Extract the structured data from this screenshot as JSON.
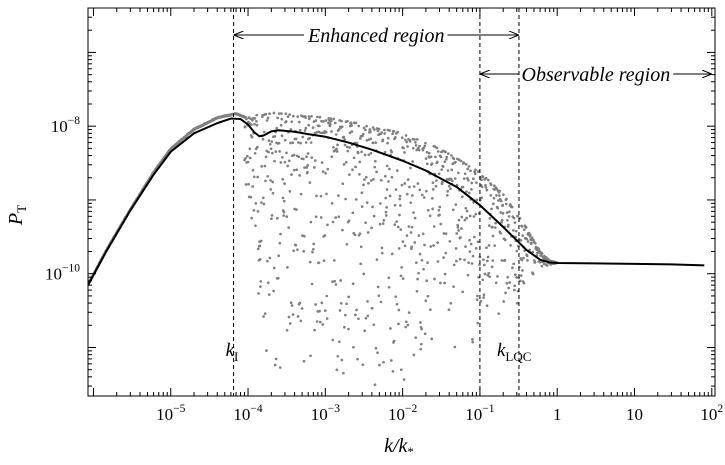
{
  "chart_data": {
    "type": "scatter",
    "xlabel_main": "k/k",
    "xlabel_sub": "*",
    "ylabel_main": "P",
    "ylabel_sub": "T",
    "x_scale": "log",
    "y_scale": "log",
    "xlim": [
      8.5e-07,
      110
    ],
    "ylim": [
      2.2e-12,
      4e-07
    ],
    "grid": false,
    "x_ticks": [
      {
        "value": 1e-05,
        "base": "10",
        "exp": "−5"
      },
      {
        "value": 0.0001,
        "base": "10",
        "exp": "−4"
      },
      {
        "value": 0.001,
        "base": "10",
        "exp": "−3"
      },
      {
        "value": 0.01,
        "base": "10",
        "exp": "−2"
      },
      {
        "value": 0.1,
        "base": "10",
        "exp": "−1"
      },
      {
        "value": 1,
        "base": "1",
        "exp": ""
      },
      {
        "value": 10,
        "base": "10",
        "exp": ""
      },
      {
        "value": 100,
        "base": "10",
        "exp": "2"
      }
    ],
    "y_ticks": [
      {
        "value": 1e-08,
        "base": "10",
        "exp": "−8"
      },
      {
        "value": 1e-10,
        "base": "10",
        "exp": "−10"
      }
    ],
    "vlines": [
      {
        "x": 6.5e-05,
        "label_main": "k",
        "label_sub": "I"
      },
      {
        "x": 0.1,
        "label_main": "",
        "label_sub": ""
      },
      {
        "x": 0.32,
        "label_main": "k",
        "label_sub": "LQC"
      }
    ],
    "regions": [
      {
        "label": "Enhanced region",
        "x_from": 6.5e-05,
        "x_to": 0.32,
        "y": 3.4e-07
      },
      {
        "label": "Observable region",
        "x_from": 0.1,
        "x_to": 100,
        "y": 1.1e-07
      }
    ],
    "series": [
      {
        "style": "line",
        "color": "#000000",
        "points": [
          [
            8.5e-07,
            7e-11
          ],
          [
            1.5e-06,
            2.1e-10
          ],
          [
            3e-06,
            7.2e-10
          ],
          [
            6e-06,
            2.2e-09
          ],
          [
            1e-05,
            4.5e-09
          ],
          [
            2e-05,
            8e-09
          ],
          [
            4e-05,
            1.1e-08
          ],
          [
            6e-05,
            1.27e-08
          ],
          [
            8e-05,
            1.25e-08
          ],
          [
            0.0001,
            1.05e-08
          ],
          [
            0.00012,
            8.3e-09
          ],
          [
            0.00014,
            7.3e-09
          ],
          [
            0.00016,
            7.5e-09
          ],
          [
            0.0002,
            8.5e-09
          ],
          [
            0.00025,
            8.8e-09
          ],
          [
            0.0004,
            8.4e-09
          ],
          [
            0.0006,
            7.8e-09
          ],
          [
            0.001,
            7.2e-09
          ],
          [
            0.002,
            6e-09
          ],
          [
            0.004,
            4.8e-09
          ],
          [
            0.01,
            3.4e-09
          ],
          [
            0.02,
            2.5e-09
          ],
          [
            0.05,
            1.5e-09
          ],
          [
            0.1,
            8.5e-10
          ],
          [
            0.2,
            4.3e-10
          ],
          [
            0.4,
            2.1e-10
          ],
          [
            0.6,
            1.55e-10
          ],
          [
            0.8,
            1.42e-10
          ],
          [
            1,
            1.4e-10
          ],
          [
            3,
            1.38e-10
          ],
          [
            10,
            1.36e-10
          ],
          [
            30,
            1.34e-10
          ],
          [
            80,
            1.3e-10
          ]
        ]
      },
      {
        "style": "dots",
        "color": "#808080",
        "upper_envelope": [
          [
            8.5e-07,
            7.2e-11
          ],
          [
            1.5e-06,
            2.2e-10
          ],
          [
            3e-06,
            7.5e-10
          ],
          [
            6e-06,
            2.4e-09
          ],
          [
            1e-05,
            5e-09
          ],
          [
            2e-05,
            9.2e-09
          ],
          [
            4e-05,
            1.32e-08
          ],
          [
            7e-05,
            1.5e-08
          ],
          [
            0.0001,
            1.3e-08
          ],
          [
            0.00015,
            1.5e-08
          ],
          [
            0.0002,
            1.52e-08
          ],
          [
            0.0003,
            1.48e-08
          ],
          [
            0.0005,
            1.42e-08
          ],
          [
            0.001,
            1.3e-08
          ],
          [
            0.003,
            1.1e-08
          ],
          [
            0.01,
            8e-09
          ],
          [
            0.03,
            5e-09
          ],
          [
            0.1,
            2.4e-09
          ],
          [
            0.2,
            1.2e-09
          ],
          [
            0.4,
            4.2e-10
          ],
          [
            0.6,
            2e-10
          ],
          [
            0.8,
            1.5e-10
          ],
          [
            1,
            1.42e-10
          ]
        ],
        "lower_extent": [
          [
            9e-05,
            1.5e-09
          ],
          [
            0.0002,
            2.2e-12
          ],
          [
            0.001,
            2.2e-12
          ],
          [
            0.01,
            3e-12
          ],
          [
            0.1,
            1.2e-11
          ],
          [
            0.3,
            3e-11
          ],
          [
            0.5,
            1e-10
          ],
          [
            0.8,
            1.3e-10
          ],
          [
            1,
            1.38e-10
          ]
        ]
      }
    ]
  }
}
